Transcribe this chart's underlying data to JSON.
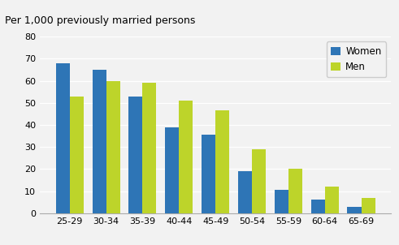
{
  "categories": [
    "25-29",
    "30-34",
    "35-39",
    "40-44",
    "45-49",
    "50-54",
    "55-59",
    "60-64",
    "65-69"
  ],
  "women_values": [
    68,
    65,
    53,
    39,
    35.5,
    19,
    10.5,
    6,
    3
  ],
  "men_values": [
    53,
    60,
    59,
    51,
    46.5,
    29,
    20,
    12,
    7
  ],
  "women_color": "#2e75b6",
  "men_color": "#bdd42a",
  "ylabel": "Per 1,000 previously married persons",
  "ylim": [
    0,
    80
  ],
  "yticks": [
    0,
    10,
    20,
    30,
    40,
    50,
    60,
    70,
    80
  ],
  "legend_labels": [
    "Women",
    "Men"
  ],
  "bar_width": 0.38,
  "ylabel_fontsize": 9,
  "tick_fontsize": 8,
  "legend_fontsize": 8.5,
  "background_color": "#f2f2f2"
}
